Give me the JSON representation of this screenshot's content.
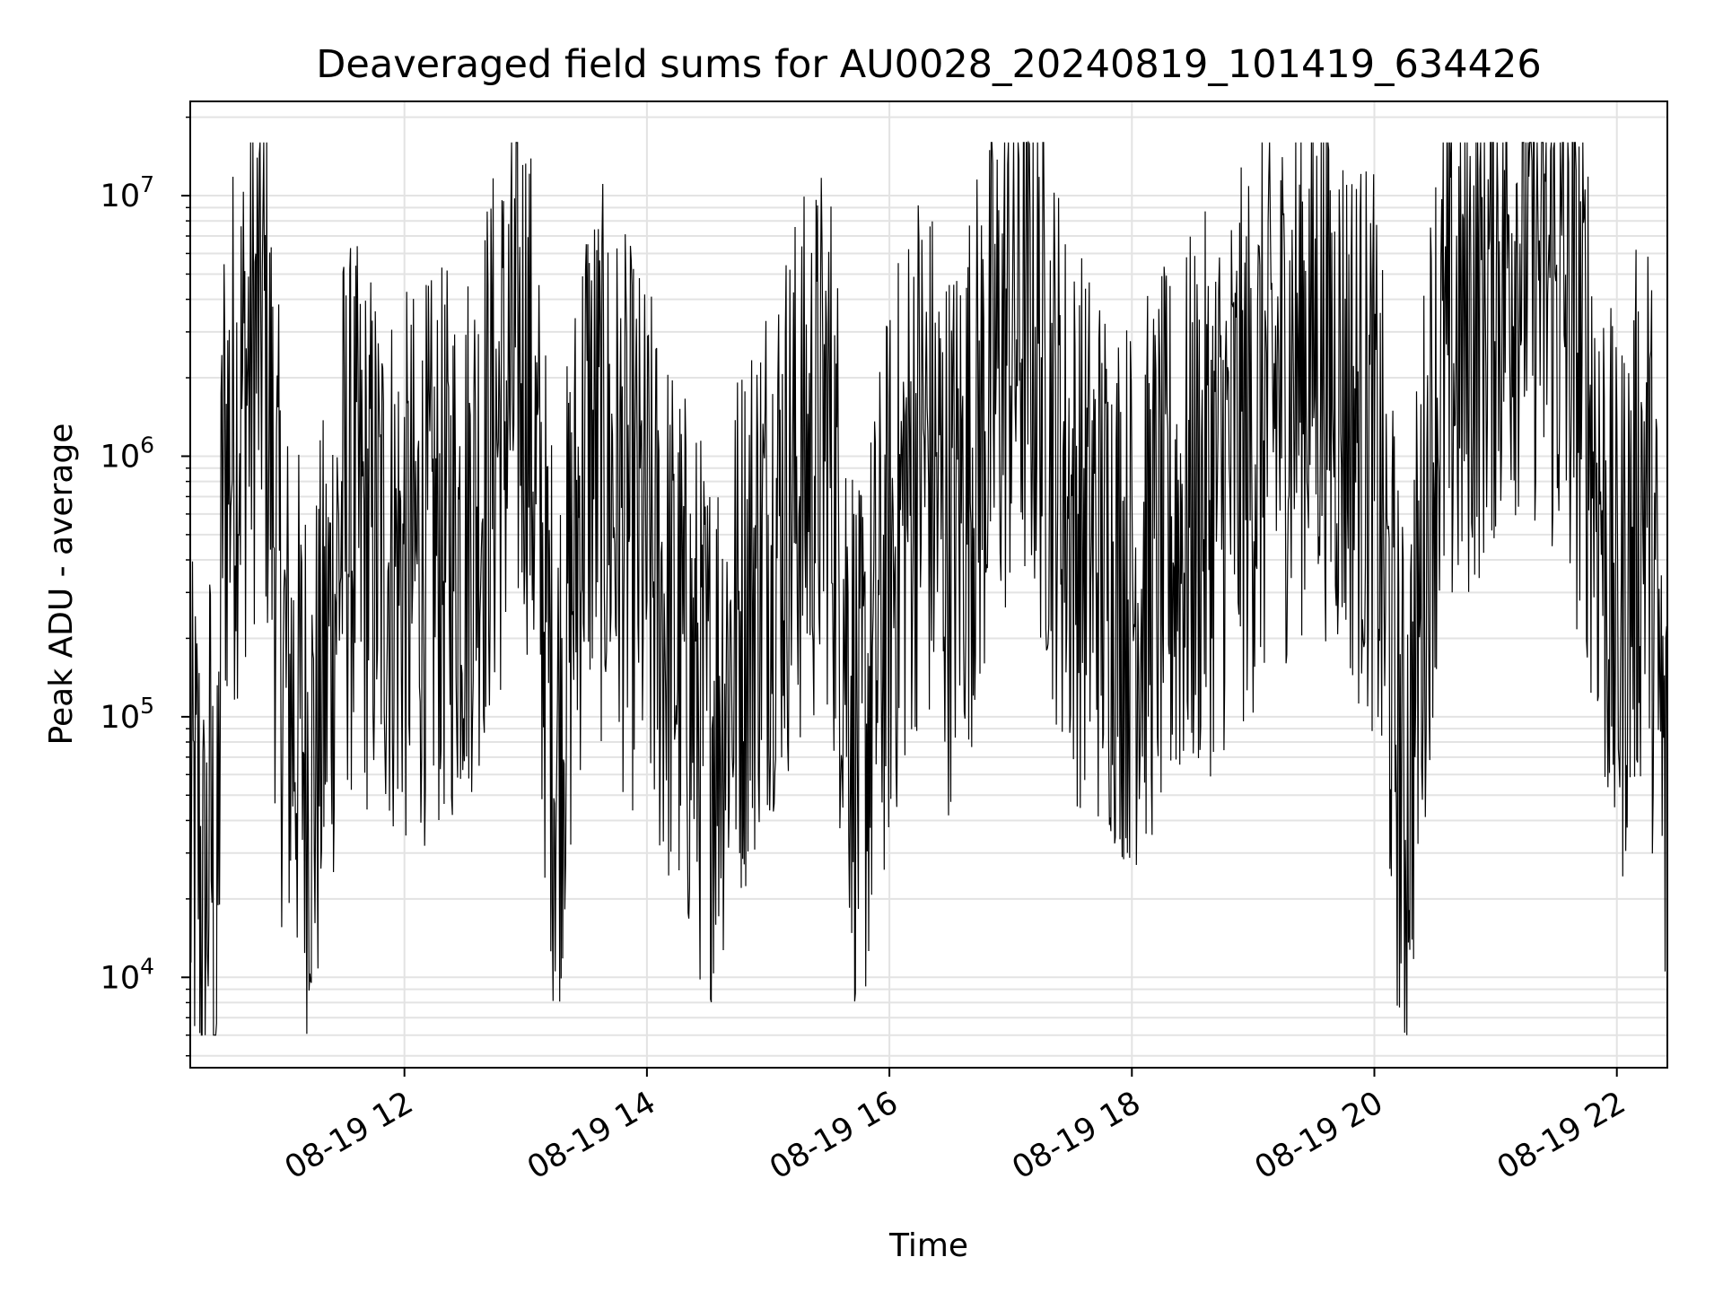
{
  "chart_data": {
    "type": "line",
    "title": "Deaveraged field sums for AU0028_20240819_101419_634426",
    "xlabel": "Time",
    "ylabel": "Peak ADU - average",
    "yscale": "log",
    "ylim": [
      4500,
      23000000
    ],
    "xlim": [
      "2024-08-19 10:14",
      "2024-08-19 22:25"
    ],
    "grid": "on (major and minor)",
    "legend": "none",
    "line_color": "#000000",
    "x_ticks": [
      {
        "value": "2024-08-19 12:00",
        "label": "08-19 12"
      },
      {
        "value": "2024-08-19 14:00",
        "label": "08-19 14"
      },
      {
        "value": "2024-08-19 16:00",
        "label": "08-19 16"
      },
      {
        "value": "2024-08-19 18:00",
        "label": "08-19 18"
      },
      {
        "value": "2024-08-19 20:00",
        "label": "08-19 20"
      },
      {
        "value": "2024-08-19 22:00",
        "label": "08-19 22"
      }
    ],
    "y_ticks": [
      {
        "value": 10000,
        "base": "10",
        "exp": "4"
      },
      {
        "value": 100000,
        "base": "10",
        "exp": "5"
      },
      {
        "value": 1000000,
        "base": "10",
        "exp": "6"
      },
      {
        "value": 10000000,
        "base": "10",
        "exp": "7"
      }
    ],
    "series": [
      {
        "name": "",
        "points": [
          [
            "2024-08-19 10:14",
            30000
          ],
          [
            "2024-08-19 10:18",
            38000
          ],
          [
            "2024-08-19 10:21",
            13000
          ],
          [
            "2024-08-19 10:24",
            45000
          ],
          [
            "2024-08-19 10:27",
            6500
          ],
          [
            "2024-08-19 10:30",
            900000
          ],
          [
            "2024-08-19 10:37",
            1400000
          ],
          [
            "2024-08-19 10:45",
            2500000
          ],
          [
            "2024-08-19 10:50",
            3800000
          ],
          [
            "2024-08-19 11:00",
            150000
          ],
          [
            "2024-08-19 11:15",
            60000
          ],
          [
            "2024-08-19 11:30",
            600000
          ],
          [
            "2024-08-19 12:00",
            350000
          ],
          [
            "2024-08-19 12:30",
            500000
          ],
          [
            "2024-08-19 12:45",
            1200000
          ],
          [
            "2024-08-19 13:00",
            2500000
          ],
          [
            "2024-08-19 13:15",
            70000
          ],
          [
            "2024-08-19 13:30",
            1200000
          ],
          [
            "2024-08-19 14:00",
            400000
          ],
          [
            "2024-08-19 14:30",
            90000
          ],
          [
            "2024-08-19 15:00",
            500000
          ],
          [
            "2024-08-19 15:30",
            1300000
          ],
          [
            "2024-08-19 15:45",
            60000
          ],
          [
            "2024-08-19 16:00",
            350000
          ],
          [
            "2024-08-19 16:15",
            1200000
          ],
          [
            "2024-08-19 16:30",
            500000
          ],
          [
            "2024-08-19 17:00",
            3000000
          ],
          [
            "2024-08-19 17:10",
            3300000
          ],
          [
            "2024-08-19 17:30",
            600000
          ],
          [
            "2024-08-19 18:00",
            300000
          ],
          [
            "2024-08-19 18:30",
            600000
          ],
          [
            "2024-08-19 19:00",
            1200000
          ],
          [
            "2024-08-19 19:30",
            3000000
          ],
          [
            "2024-08-19 20:00",
            1000000
          ],
          [
            "2024-08-19 20:15",
            40000
          ],
          [
            "2024-08-19 20:30",
            1600000
          ],
          [
            "2024-08-19 21:00",
            5500000
          ],
          [
            "2024-08-19 21:15",
            8000000
          ],
          [
            "2024-08-19 21:45",
            2000000
          ],
          [
            "2024-08-19 22:00",
            200000
          ],
          [
            "2024-08-19 22:15",
            900000
          ],
          [
            "2024-08-19 22:25",
            30000
          ]
        ]
      }
    ]
  }
}
